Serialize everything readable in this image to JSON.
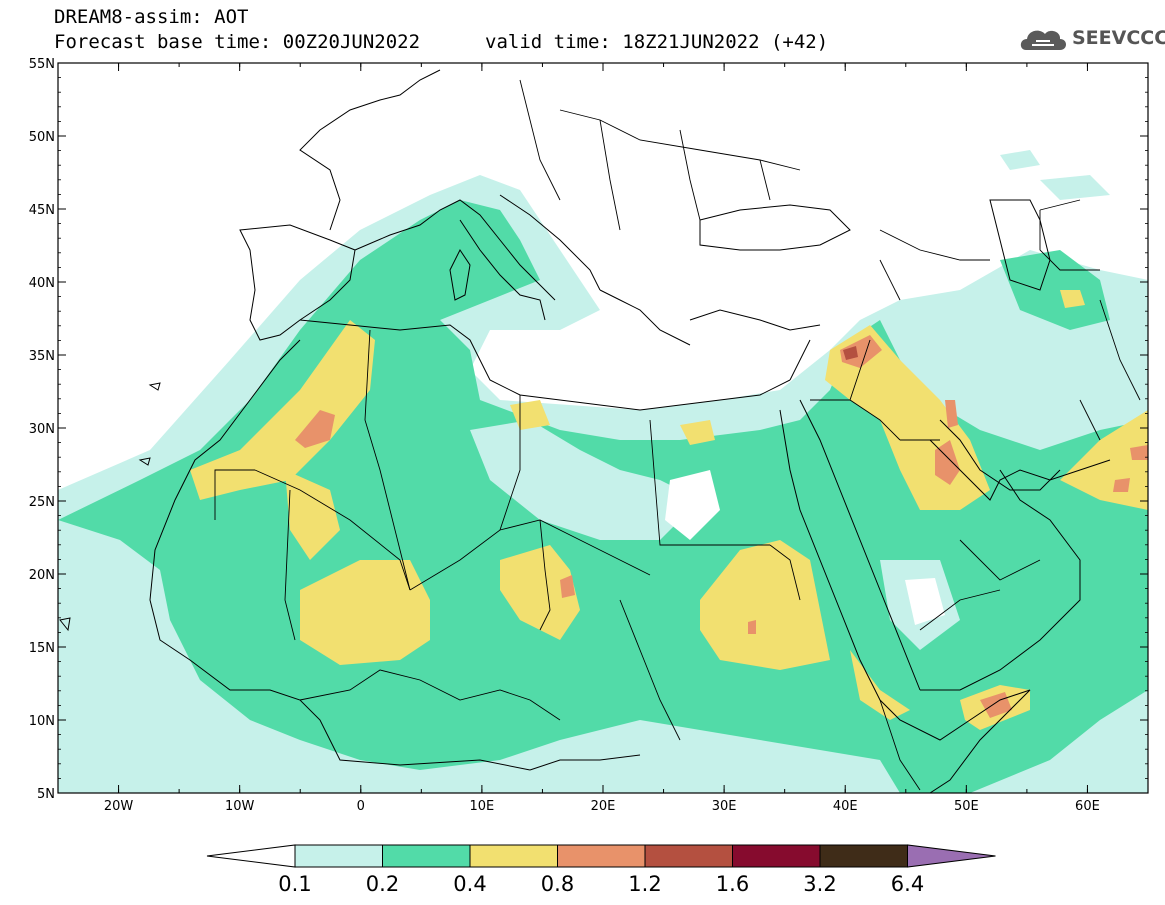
{
  "header": {
    "line1": "DREAM8-assim: AOT",
    "line2": "Forecast base time: 00Z20JUN2022",
    "valid": "valid time: 18Z21JUN2022 (+42)"
  },
  "logo": {
    "text": "SEEVCCC",
    "icon": "cloud-logo-icon"
  },
  "axes": {
    "lon_ticks": [
      "20W",
      "10W",
      "0",
      "10E",
      "20E",
      "30E",
      "40E",
      "50E",
      "60E"
    ],
    "lat_ticks": [
      "55N",
      "50N",
      "45N",
      "40N",
      "35N",
      "30N",
      "25N",
      "20N",
      "15N",
      "10N",
      "5N"
    ],
    "lon_range": [
      -25,
      65
    ],
    "lat_range": [
      5,
      55
    ]
  },
  "colorbar": {
    "labels": [
      "0.1",
      "0.2",
      "0.4",
      "0.8",
      "1.2",
      "1.6",
      "3.2",
      "6.4"
    ],
    "colors": [
      "#c6f1ea",
      "#52dba8",
      "#f2e070",
      "#e8926a",
      "#b45040",
      "#860b2e",
      "#3f2c18"
    ],
    "over_color": "#9a6eb2",
    "under_color": "#ffffff"
  },
  "palette": {
    "c1": "#c6f1ea",
    "c2": "#52dba8",
    "c3": "#f2e070",
    "c4": "#e8926a",
    "c5": "#b45040"
  }
}
